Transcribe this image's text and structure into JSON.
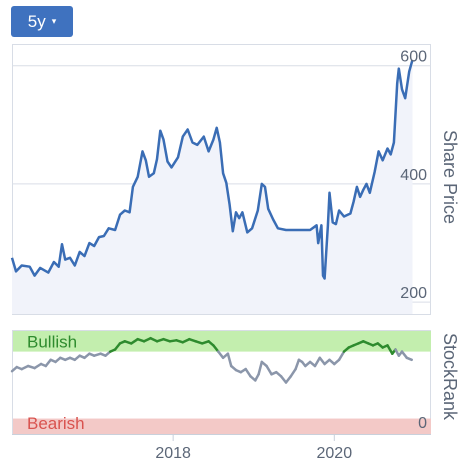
{
  "range_selector": {
    "label": "5y",
    "caret": "▾"
  },
  "colors": {
    "price_line": "#3a6db5",
    "price_fill": "#f1f3fa",
    "bullish_band": "#c3eeae",
    "bearish_band": "#f3c9c7",
    "rank_bull": "#2e8b2e",
    "rank_neutral": "#8b96aa"
  },
  "chart_data": [
    {
      "type": "area",
      "ylabel": "Share Price",
      "ylim": [
        180,
        635
      ],
      "xlim": [
        2016.0,
        2021.2
      ],
      "yticks": [
        200,
        400,
        600
      ],
      "xticks": [
        {
          "value": 2018,
          "label": "2018"
        },
        {
          "value": 2020,
          "label": "2020"
        }
      ],
      "series": [
        {
          "points": [
            [
              2016.0,
              275
            ],
            [
              2016.05,
              252
            ],
            [
              2016.12,
              262
            ],
            [
              2016.22,
              260
            ],
            [
              2016.28,
              245
            ],
            [
              2016.35,
              258
            ],
            [
              2016.45,
              250
            ],
            [
              2016.52,
              268
            ],
            [
              2016.58,
              260
            ],
            [
              2016.62,
              298
            ],
            [
              2016.66,
              272
            ],
            [
              2016.72,
              275
            ],
            [
              2016.78,
              262
            ],
            [
              2016.84,
              285
            ],
            [
              2016.9,
              278
            ],
            [
              2016.96,
              300
            ],
            [
              2017.02,
              295
            ],
            [
              2017.08,
              310
            ],
            [
              2017.14,
              312
            ],
            [
              2017.2,
              325
            ],
            [
              2017.28,
              322
            ],
            [
              2017.34,
              348
            ],
            [
              2017.4,
              355
            ],
            [
              2017.46,
              352
            ],
            [
              2017.5,
              395
            ],
            [
              2017.56,
              412
            ],
            [
              2017.62,
              455
            ],
            [
              2017.66,
              440
            ],
            [
              2017.7,
              412
            ],
            [
              2017.76,
              418
            ],
            [
              2017.8,
              442
            ],
            [
              2017.84,
              490
            ],
            [
              2017.88,
              475
            ],
            [
              2017.93,
              438
            ],
            [
              2017.98,
              428
            ],
            [
              2018.06,
              445
            ],
            [
              2018.12,
              480
            ],
            [
              2018.18,
              492
            ],
            [
              2018.24,
              470
            ],
            [
              2018.3,
              466
            ],
            [
              2018.38,
              480
            ],
            [
              2018.44,
              455
            ],
            [
              2018.5,
              475
            ],
            [
              2018.54,
              495
            ],
            [
              2018.58,
              470
            ],
            [
              2018.62,
              418
            ],
            [
              2018.66,
              402
            ],
            [
              2018.7,
              365
            ],
            [
              2018.74,
              320
            ],
            [
              2018.78,
              352
            ],
            [
              2018.82,
              342
            ],
            [
              2018.86,
              352
            ],
            [
              2018.92,
              318
            ],
            [
              2018.98,
              325
            ],
            [
              2019.05,
              355
            ],
            [
              2019.1,
              400
            ],
            [
              2019.14,
              395
            ],
            [
              2019.18,
              358
            ],
            [
              2019.24,
              340
            ],
            [
              2019.3,
              325
            ],
            [
              2019.4,
              322
            ],
            [
              2019.5,
              322
            ],
            [
              2019.6,
              322
            ],
            [
              2019.7,
              322
            ],
            [
              2019.78,
              330
            ],
            [
              2019.8,
              300
            ],
            [
              2019.84,
              330
            ],
            [
              2019.86,
              245
            ],
            [
              2019.88,
              240
            ],
            [
              2019.92,
              330
            ],
            [
              2019.94,
              385
            ],
            [
              2019.98,
              335
            ],
            [
              2020.02,
              332
            ],
            [
              2020.06,
              355
            ],
            [
              2020.12,
              345
            ],
            [
              2020.2,
              350
            ],
            [
              2020.24,
              370
            ],
            [
              2020.28,
              395
            ],
            [
              2020.32,
              378
            ],
            [
              2020.36,
              390
            ],
            [
              2020.4,
              400
            ],
            [
              2020.44,
              385
            ],
            [
              2020.5,
              420
            ],
            [
              2020.55,
              455
            ],
            [
              2020.6,
              440
            ],
            [
              2020.66,
              460
            ],
            [
              2020.7,
              450
            ],
            [
              2020.74,
              470
            ],
            [
              2020.78,
              570
            ],
            [
              2020.8,
              595
            ],
            [
              2020.84,
              560
            ],
            [
              2020.88,
              545
            ],
            [
              2020.93,
              590
            ],
            [
              2020.97,
              610
            ]
          ]
        }
      ]
    },
    {
      "type": "line",
      "ylabel": "StockRank",
      "ylim": [
        0,
        100
      ],
      "xlim": [
        2016.0,
        2021.2
      ],
      "bands": [
        {
          "label": "Bullish",
          "from": 80,
          "to": 100,
          "color": "#c3eeae",
          "text_color": "#2e8b2e"
        },
        {
          "label": "Bearish",
          "from": 0,
          "to": 15,
          "color": "#f3c9c7",
          "text_color": "#d9534f"
        }
      ],
      "yticks": [
        {
          "value": 0,
          "label": "0"
        }
      ],
      "threshold": 80,
      "series": [
        {
          "points": [
            [
              2016.0,
              61
            ],
            [
              2016.06,
              65
            ],
            [
              2016.12,
              63
            ],
            [
              2016.2,
              66
            ],
            [
              2016.28,
              64
            ],
            [
              2016.36,
              68
            ],
            [
              2016.42,
              66
            ],
            [
              2016.48,
              72
            ],
            [
              2016.54,
              70
            ],
            [
              2016.6,
              74
            ],
            [
              2016.66,
              72
            ],
            [
              2016.72,
              74
            ],
            [
              2016.78,
              72
            ],
            [
              2016.84,
              76
            ],
            [
              2016.9,
              74
            ],
            [
              2016.96,
              78
            ],
            [
              2017.02,
              76
            ],
            [
              2017.1,
              78
            ],
            [
              2017.16,
              76
            ],
            [
              2017.22,
              80
            ],
            [
              2017.28,
              82
            ],
            [
              2017.34,
              88
            ],
            [
              2017.4,
              90
            ],
            [
              2017.48,
              88
            ],
            [
              2017.56,
              92
            ],
            [
              2017.64,
              90
            ],
            [
              2017.72,
              93
            ],
            [
              2017.8,
              90
            ],
            [
              2017.88,
              92
            ],
            [
              2017.96,
              90
            ],
            [
              2018.04,
              91
            ],
            [
              2018.12,
              89
            ],
            [
              2018.2,
              92
            ],
            [
              2018.28,
              90
            ],
            [
              2018.36,
              88
            ],
            [
              2018.44,
              90
            ],
            [
              2018.5,
              86
            ],
            [
              2018.56,
              80
            ],
            [
              2018.62,
              74
            ],
            [
              2018.68,
              78
            ],
            [
              2018.72,
              66
            ],
            [
              2018.78,
              62
            ],
            [
              2018.84,
              60
            ],
            [
              2018.9,
              63
            ],
            [
              2018.96,
              56
            ],
            [
              2019.02,
              52
            ],
            [
              2019.06,
              58
            ],
            [
              2019.1,
              70
            ],
            [
              2019.16,
              66
            ],
            [
              2019.22,
              58
            ],
            [
              2019.28,
              60
            ],
            [
              2019.34,
              56
            ],
            [
              2019.4,
              50
            ],
            [
              2019.46,
              56
            ],
            [
              2019.52,
              63
            ],
            [
              2019.56,
              72
            ],
            [
              2019.6,
              70
            ],
            [
              2019.64,
              66
            ],
            [
              2019.7,
              70
            ],
            [
              2019.76,
              66
            ],
            [
              2019.82,
              74
            ],
            [
              2019.88,
              68
            ],
            [
              2019.94,
              72
            ],
            [
              2020.0,
              68
            ],
            [
              2020.06,
              72
            ],
            [
              2020.12,
              80
            ],
            [
              2020.18,
              84
            ],
            [
              2020.24,
              86
            ],
            [
              2020.3,
              88
            ],
            [
              2020.36,
              90
            ],
            [
              2020.42,
              88
            ],
            [
              2020.48,
              86
            ],
            [
              2020.54,
              88
            ],
            [
              2020.6,
              84
            ],
            [
              2020.66,
              86
            ],
            [
              2020.72,
              78
            ],
            [
              2020.76,
              82
            ],
            [
              2020.8,
              76
            ],
            [
              2020.84,
              80
            ],
            [
              2020.9,
              74
            ],
            [
              2020.96,
              72
            ]
          ]
        }
      ]
    }
  ]
}
